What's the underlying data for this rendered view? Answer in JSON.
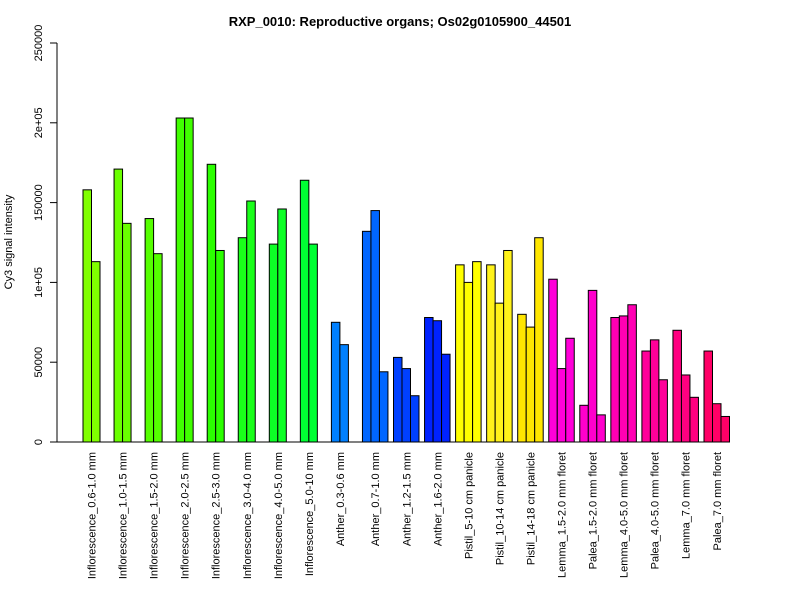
{
  "chart_data": {
    "type": "bar",
    "title": "RXP_0010: Reproductive organs; Os02g0105900_44501",
    "xlabel": "",
    "ylabel": "Cy3 signal intensity",
    "ylim": [
      0,
      250000
    ],
    "yticks": [
      0,
      50000,
      100000,
      150000,
      200000,
      250000
    ],
    "ytick_labels": [
      "0",
      "50000",
      "1e+05",
      "150000",
      "2e+05",
      "250000"
    ],
    "grid": false,
    "groups": [
      {
        "label": "Inflorescence_0.6-1.0 mm",
        "color": "#80ff00",
        "values": [
          158000,
          113000
        ]
      },
      {
        "label": "Inflorescence_1.0-1.5 mm",
        "color": "#6aff00",
        "values": [
          171000,
          137000
        ]
      },
      {
        "label": "Inflorescence_1.5-2.0 mm",
        "color": "#55ff00",
        "values": [
          140000,
          118000
        ]
      },
      {
        "label": "Inflorescence_2.0-2.5 mm",
        "color": "#40ff00",
        "values": [
          203000,
          203000
        ]
      },
      {
        "label": "Inflorescence_2.5-3.0 mm",
        "color": "#2bff00",
        "values": [
          174000,
          120000
        ]
      },
      {
        "label": "Inflorescence_3.0-4.0 mm",
        "color": "#1aff1a",
        "values": [
          128000,
          151000
        ]
      },
      {
        "label": "Inflorescence_4.0-5.0 mm",
        "color": "#0dff26",
        "values": [
          124000,
          146000
        ]
      },
      {
        "label": "Inflorescence_5.0-10 mm",
        "color": "#00ff33",
        "values": [
          164000,
          124000
        ]
      },
      {
        "label": "Anther_0.3-0.6 mm",
        "color": "#0080ff",
        "values": [
          75000,
          61000
        ]
      },
      {
        "label": "Anther_0.7-1.0 mm",
        "color": "#0066ff",
        "values": [
          132000,
          145000,
          44000
        ]
      },
      {
        "label": "Anther_1.2-1.5 mm",
        "color": "#0040ff",
        "values": [
          53000,
          46000,
          29000
        ]
      },
      {
        "label": "Anther_1.6-2.0 mm",
        "color": "#0022ff",
        "values": [
          78000,
          76000,
          55000
        ]
      },
      {
        "label": "Pistil_5-10 cm panicle",
        "color": "#ffff00",
        "values": [
          111000,
          100000,
          113000
        ]
      },
      {
        "label": "Pistil_10-14 cm panicle",
        "color": "#fff21a",
        "values": [
          111000,
          87000,
          120000
        ]
      },
      {
        "label": "Pistil_14-18 cm panicle",
        "color": "#ffe600",
        "values": [
          80000,
          72000,
          128000
        ]
      },
      {
        "label": "Lemma_1.5-2.0 mm floret",
        "color": "#ff00d9",
        "values": [
          102000,
          46000,
          65000
        ]
      },
      {
        "label": "Palea_1.5-2.0 mm floret",
        "color": "#ff00cc",
        "values": [
          23000,
          95000,
          17000
        ]
      },
      {
        "label": "Lemma_4.0-5.0 mm floret",
        "color": "#ff00b3",
        "values": [
          78000,
          79000,
          86000
        ]
      },
      {
        "label": "Palea_4.0-5.0 mm floret",
        "color": "#ff0099",
        "values": [
          57000,
          64000,
          39000
        ]
      },
      {
        "label": "Lemma_7.0 mm floret",
        "color": "#ff0080",
        "values": [
          70000,
          42000,
          28000
        ]
      },
      {
        "label": "Palea_7.0 mm floret",
        "color": "#ff0066",
        "values": [
          57000,
          24000,
          16000
        ]
      }
    ]
  }
}
